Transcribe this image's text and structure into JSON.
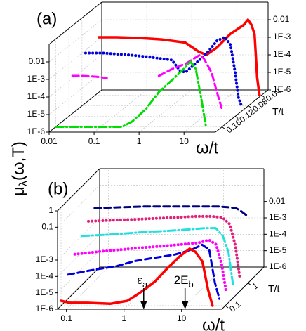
{
  "ylabel": {
    "symbol": "μ",
    "subscript": "λ",
    "args": "(ω,T)"
  },
  "chart_data": [
    {
      "type": "line",
      "panel_label": "(a)",
      "xlabel": "ω/t",
      "depth_label": "T/t",
      "xscale": "log",
      "zscale": "log",
      "dscale": "linear",
      "xlim": [
        0.01,
        50
      ],
      "xticks": [
        0.01,
        0.1,
        1,
        10
      ],
      "zlim": [
        1e-06,
        0.1
      ],
      "zticks": [
        0.01,
        {
          "value": 0.001,
          "label": "1E-3"
        },
        {
          "value": 0.0001,
          "label": "1E-4"
        },
        {
          "value": 1e-05,
          "label": "1E-5"
        },
        {
          "value": 1e-06,
          "label": "1E-6"
        }
      ],
      "right_zticks": [
        0.01,
        {
          "value": 0.001,
          "label": "1E-3"
        },
        {
          "value": 0.0001,
          "label": "1E-4"
        },
        {
          "value": 1e-05,
          "label": "1E-5"
        },
        {
          "value": 1e-06,
          "label": "1E-6"
        }
      ],
      "dlim": [
        0.18,
        0.02
      ],
      "dticks": [
        0.04,
        0.08,
        0.12,
        0.16
      ],
      "grid": true,
      "series": [
        {
          "color": "#ff0000",
          "style": "solid",
          "T": 0.04,
          "x": [
            0.012,
            0.03,
            0.1,
            0.3,
            1,
            2,
            3,
            5,
            10,
            20,
            25,
            30,
            35,
            40,
            45
          ],
          "values": [
            0.002,
            0.002,
            0.0018,
            0.0015,
            0.001,
            0.0003,
            0.0002,
            0.0005,
            0.003,
            0.01,
            0.02,
            0.01,
            0.003,
            1e-05,
            1e-06
          ]
        },
        {
          "color": "#0000dd",
          "style": "dotted",
          "T": 0.08,
          "x": [
            0.012,
            0.03,
            0.1,
            0.3,
            1,
            1.5,
            2,
            3,
            6,
            10,
            15,
            20,
            25,
            30,
            35
          ],
          "values": [
            0.001,
            0.001,
            0.0008,
            0.0006,
            0.0004,
            0.0001,
            8e-05,
            0.0002,
            0.001,
            0.005,
            0.008,
            0.003,
            0.0001,
            3e-06,
            1e-06
          ]
        },
        {
          "color": "#ff00ff",
          "style": "dashed",
          "T": 0.12,
          "x": [
            0.012,
            0.02,
            0.04,
            0.07,
            0.2,
            1,
            2,
            4,
            8,
            10,
            15,
            20,
            25
          ],
          "values": [
            0.0002,
            0.0002,
            0.00018,
            0.00015,
            null,
            0.0002,
            0.0005,
            0.001,
            0.003,
            0.002,
            0.0003,
            2e-05,
            3e-06
          ]
        },
        {
          "color": "#00dd00",
          "style": "dashdot",
          "T": 0.16,
          "x": [
            0.01,
            0.03,
            0.1,
            0.3,
            0.5,
            1,
            2,
            4,
            7,
            10,
            13,
            17,
            22
          ],
          "values": [
            1e-06,
            1e-06,
            1e-06,
            1e-06,
            2e-06,
            1e-05,
            0.0001,
            0.0005,
            0.002,
            0.005,
            0.002,
            5e-05,
            1e-06
          ]
        }
      ]
    },
    {
      "type": "line",
      "panel_label": "(b)",
      "xlabel": "ω/t",
      "depth_label": "T/t",
      "xscale": "log",
      "zscale": "log",
      "dscale": "log",
      "xlim": [
        0.07,
        50
      ],
      "xticks": [
        0.1,
        1,
        10
      ],
      "zlim": [
        1e-06,
        1
      ],
      "zticks": [
        1,
        0.1,
        {
          "value": 0.001,
          "label": "1E-3"
        },
        {
          "value": 0.0001,
          "label": "1E-4"
        },
        {
          "value": 1e-05,
          "label": "1E-5"
        },
        {
          "value": 1e-06,
          "label": "1E-6"
        }
      ],
      "right_zticks": [
        0.01,
        {
          "value": 0.001,
          "label": "1E-3"
        },
        {
          "value": 0.0001,
          "label": "1E-4"
        },
        {
          "value": 1e-05,
          "label": "1E-5"
        },
        {
          "value": 1e-06,
          "label": "1E-6"
        }
      ],
      "dlim": [
        0.07,
        5
      ],
      "dticks": [
        0.1,
        1
      ],
      "grid": true,
      "annotations": [
        {
          "label": "ε",
          "subscript": "a",
          "x": 2.2
        },
        {
          "label": "2E",
          "subscript": "b",
          "x": 11.5
        }
      ],
      "series": [
        {
          "color": "#000080",
          "style": "dashed",
          "T": 3,
          "x": [
            0.07,
            0.2,
            0.5,
            1,
            2,
            5,
            10,
            15,
            20,
            25,
            30
          ],
          "values": [
            0.008,
            0.009,
            0.01,
            0.01,
            0.01,
            0.01,
            0.01,
            0.009,
            0.008,
            0.005,
            0.003
          ]
        },
        {
          "color": "#e0207a",
          "style": "dotted",
          "T": 1.6,
          "x": [
            0.07,
            0.2,
            0.5,
            1,
            2,
            5,
            10,
            15,
            20,
            25,
            30
          ],
          "values": [
            0.003,
            0.0035,
            0.004,
            0.0045,
            0.005,
            0.006,
            0.006,
            0.005,
            0.002,
            0.0001,
            1e-06
          ]
        },
        {
          "color": "#22e0e0",
          "style": "dashdot",
          "T": 0.8,
          "x": [
            0.07,
            0.2,
            0.5,
            1,
            2,
            5,
            10,
            15,
            20,
            25,
            30
          ],
          "values": [
            0.001,
            0.0012,
            0.0015,
            0.0018,
            0.002,
            0.0025,
            0.003,
            0.003,
            0.001,
            0.0001,
            1e-06
          ]
        },
        {
          "color": "#ff00ff",
          "style": "dotted",
          "T": 0.4,
          "x": [
            0.07,
            0.2,
            0.5,
            1,
            2,
            5,
            10,
            15,
            20,
            25,
            30
          ],
          "values": [
            0.0002,
            0.0003,
            0.0004,
            0.0005,
            0.0006,
            0.0008,
            0.001,
            0.0015,
            0.0008,
            5e-05,
            1e-06
          ]
        },
        {
          "color": "#0000dd",
          "style": "dashed",
          "T": 0.2,
          "x": [
            0.07,
            0.2,
            0.5,
            1,
            2,
            5,
            10,
            15,
            20,
            25,
            30
          ],
          "values": [
            3e-05,
            6e-05,
            0.0001,
            0.0002,
            0.0003,
            0.0005,
            0.001,
            0.002,
            0.001,
            1e-05,
            1e-06
          ]
        },
        {
          "color": "#ff0000",
          "style": "solid",
          "T": 0.1,
          "x": [
            0.07,
            0.1,
            0.2,
            0.5,
            1,
            1.5,
            2,
            3,
            5,
            8,
            12,
            15,
            20,
            25,
            30
          ],
          "values": [
            2e-06,
            1.5e-06,
            1.5e-06,
            1.3e-06,
            2e-06,
            5e-06,
            1e-05,
            3e-05,
            0.0002,
            0.001,
            0.003,
            0.002,
            0.0005,
            1e-05,
            1e-06
          ]
        }
      ]
    }
  ]
}
